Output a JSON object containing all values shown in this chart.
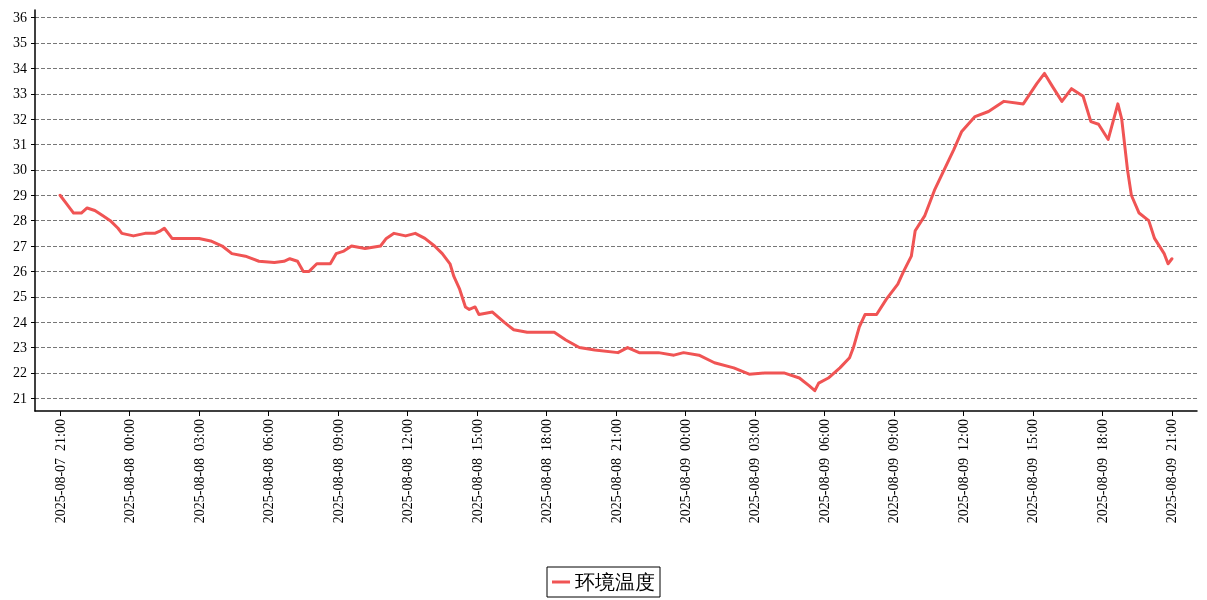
{
  "chart_data": {
    "type": "line",
    "x": [
      "2025-08-07T21:00",
      "2025-08-07T21:15",
      "2025-08-07T21:35",
      "2025-08-07T21:55",
      "2025-08-07T22:10",
      "2025-08-07T22:30",
      "2025-08-07T22:50",
      "2025-08-07T23:10",
      "2025-08-07T23:30",
      "2025-08-07T23:40",
      "2025-08-08T00:10",
      "2025-08-08T00:40",
      "2025-08-08T01:05",
      "2025-08-08T01:20",
      "2025-08-08T01:30",
      "2025-08-08T01:50",
      "2025-08-08T02:25",
      "2025-08-08T03:00",
      "2025-08-08T03:30",
      "2025-08-08T04:00",
      "2025-08-08T04:25",
      "2025-08-08T05:00",
      "2025-08-08T05:35",
      "2025-08-08T06:15",
      "2025-08-08T06:40",
      "2025-08-08T06:55",
      "2025-08-08T07:15",
      "2025-08-08T07:30",
      "2025-08-08T07:45",
      "2025-08-08T08:05",
      "2025-08-08T08:40",
      "2025-08-08T08:55",
      "2025-08-08T09:15",
      "2025-08-08T09:35",
      "2025-08-08T10:10",
      "2025-08-08T10:50",
      "2025-08-08T11:05",
      "2025-08-08T11:25",
      "2025-08-08T11:55",
      "2025-08-08T12:20",
      "2025-08-08T12:45",
      "2025-08-08T13:10",
      "2025-08-08T13:30",
      "2025-08-08T13:50",
      "2025-08-08T14:00",
      "2025-08-08T14:15",
      "2025-08-08T14:30",
      "2025-08-08T14:40",
      "2025-08-08T14:55",
      "2025-08-08T15:05",
      "2025-08-08T15:40",
      "2025-08-08T16:10",
      "2025-08-08T16:35",
      "2025-08-08T17:10",
      "2025-08-08T18:20",
      "2025-08-08T18:50",
      "2025-08-08T19:25",
      "2025-08-08T20:05",
      "2025-08-08T21:05",
      "2025-08-08T21:30",
      "2025-08-08T22:00",
      "2025-08-08T22:50",
      "2025-08-08T23:30",
      "2025-08-08T23:55",
      "2025-08-09T00:35",
      "2025-08-09T01:15",
      "2025-08-09T02:05",
      "2025-08-09T02:45",
      "2025-08-09T03:25",
      "2025-08-09T04:15",
      "2025-08-09T04:55",
      "2025-08-09T05:20",
      "2025-08-09T05:35",
      "2025-08-09T05:45",
      "2025-08-09T06:10",
      "2025-08-09T06:40",
      "2025-08-09T07:05",
      "2025-08-09T07:15",
      "2025-08-09T07:30",
      "2025-08-09T07:45",
      "2025-08-09T08:15",
      "2025-08-09T08:40",
      "2025-08-09T09:10",
      "2025-08-09T09:25",
      "2025-08-09T09:45",
      "2025-08-09T09:55",
      "2025-08-09T10:20",
      "2025-08-09T10:45",
      "2025-08-09T11:10",
      "2025-08-09T11:35",
      "2025-08-09T11:55",
      "2025-08-09T12:30",
      "2025-08-09T13:05",
      "2025-08-09T13:45",
      "2025-08-09T14:35",
      "2025-08-09T15:10",
      "2025-08-09T15:30",
      "2025-08-09T15:50",
      "2025-08-09T16:15",
      "2025-08-09T16:40",
      "2025-08-09T17:10",
      "2025-08-09T17:30",
      "2025-08-09T17:50",
      "2025-08-09T18:15",
      "2025-08-09T18:40",
      "2025-08-09T18:50",
      "2025-08-09T19:05",
      "2025-08-09T19:15",
      "2025-08-09T19:35",
      "2025-08-09T20:00",
      "2025-08-09T20:15",
      "2025-08-09T20:40",
      "2025-08-09T20:50",
      "2025-08-09T21:00"
    ],
    "series": [
      {
        "name": "环境温度",
        "color": "#f05454",
        "values": [
          29.0,
          28.7,
          28.3,
          28.3,
          28.5,
          28.4,
          28.2,
          28.0,
          27.7,
          27.5,
          27.4,
          27.5,
          27.5,
          27.6,
          27.7,
          27.3,
          27.3,
          27.3,
          27.2,
          27.0,
          26.7,
          26.6,
          26.4,
          26.35,
          26.4,
          26.5,
          26.4,
          26.0,
          26.0,
          26.3,
          26.3,
          26.7,
          26.8,
          27.0,
          26.9,
          27.0,
          27.3,
          27.5,
          27.4,
          27.5,
          27.3,
          27.0,
          26.7,
          26.3,
          25.8,
          25.3,
          24.6,
          24.5,
          24.6,
          24.3,
          24.4,
          24.0,
          23.7,
          23.6,
          23.6,
          23.3,
          23.0,
          22.9,
          22.8,
          23.0,
          22.8,
          22.8,
          22.7,
          22.8,
          22.7,
          22.4,
          22.2,
          21.95,
          22.0,
          22.0,
          21.8,
          21.5,
          21.3,
          21.6,
          21.8,
          22.2,
          22.6,
          23.0,
          23.8,
          24.3,
          24.3,
          24.9,
          25.5,
          26.0,
          26.6,
          27.6,
          28.2,
          29.2,
          30.0,
          30.8,
          31.5,
          32.1,
          32.3,
          32.7,
          32.6,
          33.4,
          33.8,
          33.3,
          32.7,
          33.2,
          32.9,
          31.9,
          31.8,
          31.2,
          32.6,
          32.0,
          30.0,
          29.0,
          28.3,
          28.0,
          27.3,
          26.7,
          26.3,
          26.5
        ]
      }
    ],
    "xlim": [
      "2025-08-07T19:55",
      "2025-08-09T22:05"
    ],
    "xticks": [
      {
        "value": "2025-08-07T21:00",
        "label": "2025-08-07  21:00"
      },
      {
        "value": "2025-08-08T00:00",
        "label": "2025-08-08  00:00"
      },
      {
        "value": "2025-08-08T03:00",
        "label": "2025-08-08  03:00"
      },
      {
        "value": "2025-08-08T06:00",
        "label": "2025-08-08  06:00"
      },
      {
        "value": "2025-08-08T09:00",
        "label": "2025-08-08  09:00"
      },
      {
        "value": "2025-08-08T12:00",
        "label": "2025-08-08  12:00"
      },
      {
        "value": "2025-08-08T15:00",
        "label": "2025-08-08  15:00"
      },
      {
        "value": "2025-08-08T18:00",
        "label": "2025-08-08  18:00"
      },
      {
        "value": "2025-08-08T21:00",
        "label": "2025-08-08  21:00"
      },
      {
        "value": "2025-08-09T00:00",
        "label": "2025-08-09  00:00"
      },
      {
        "value": "2025-08-09T03:00",
        "label": "2025-08-09  03:00"
      },
      {
        "value": "2025-08-09T06:00",
        "label": "2025-08-09  06:00"
      },
      {
        "value": "2025-08-09T09:00",
        "label": "2025-08-09  09:00"
      },
      {
        "value": "2025-08-09T12:00",
        "label": "2025-08-09  12:00"
      },
      {
        "value": "2025-08-09T15:00",
        "label": "2025-08-09  15:00"
      },
      {
        "value": "2025-08-09T18:00",
        "label": "2025-08-09  18:00"
      },
      {
        "value": "2025-08-09T21:00",
        "label": "2025-08-09  21:00"
      }
    ],
    "ylim": [
      20.5,
      36.3
    ],
    "yticks": [
      21,
      22,
      23,
      24,
      25,
      26,
      27,
      28,
      29,
      30,
      31,
      32,
      33,
      34,
      35,
      36
    ],
    "grid": "y",
    "legend": "bottom",
    "marker": "none",
    "line_style": "solid"
  }
}
